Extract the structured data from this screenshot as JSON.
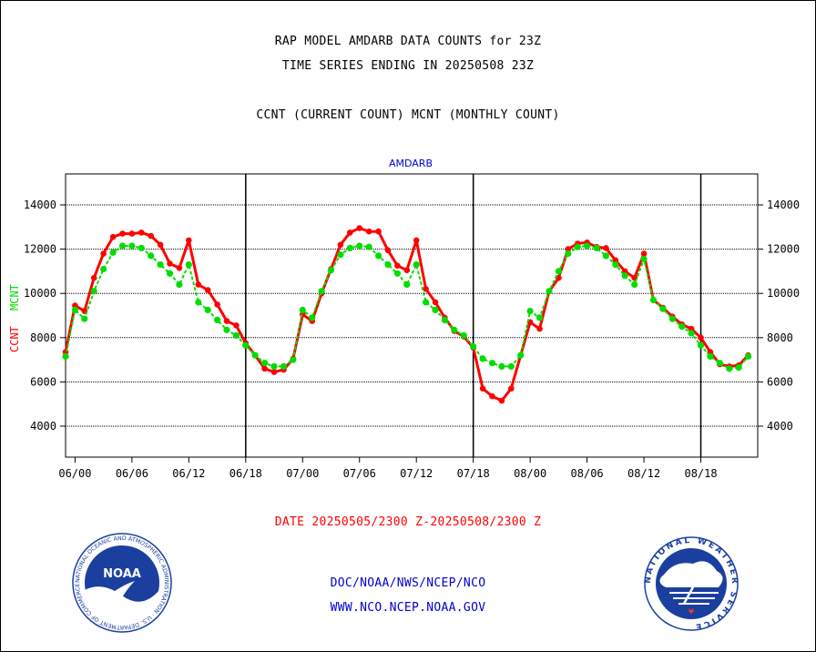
{
  "header": {
    "title_line1": "RAP MODEL AMDARB DATA COUNTS for 23Z",
    "title_line2": "TIME SERIES ENDING IN 20250508 23Z",
    "legend_line": "CCNT (CURRENT COUNT) MCNT (MONTHLY COUNT)"
  },
  "footer": {
    "date_range": "DATE 20250505/2300 Z-20250508/2300 Z",
    "org_line": "DOC/NOAA/NWS/NCEP/NCO",
    "url_line": "WWW.NCO.NCEP.NOAA.GOV"
  },
  "logos": {
    "noaa": {
      "center_text": "NOAA",
      "ring_text": "NATIONAL OCEANIC AND ATMOSPHERIC ADMINISTRATION · U.S. DEPARTMENT OF COMMERCE"
    },
    "nws": {
      "ring_text": "NATIONAL WEATHER SERVICE"
    }
  },
  "colors": {
    "ccnt": "#ff0000",
    "mcnt": "#00dd00",
    "label_blue": "#0000cc"
  },
  "chart_data": {
    "type": "line",
    "title": "AMDARB",
    "ylabel_ccnt": "CCNT",
    "ylabel_mcnt": "MCNT",
    "ylim": [
      2600,
      15400
    ],
    "yticks": [
      4000,
      6000,
      8000,
      10000,
      12000,
      14000
    ],
    "x_hours_range": [
      -1,
      72
    ],
    "xticks": [
      {
        "label": "06/00",
        "hour": 0
      },
      {
        "label": "06/06",
        "hour": 6
      },
      {
        "label": "06/12",
        "hour": 12
      },
      {
        "label": "06/18",
        "hour": 18
      },
      {
        "label": "07/00",
        "hour": 24
      },
      {
        "label": "07/06",
        "hour": 30
      },
      {
        "label": "07/12",
        "hour": 36
      },
      {
        "label": "07/18",
        "hour": 42
      },
      {
        "label": "08/00",
        "hour": 48
      },
      {
        "label": "08/06",
        "hour": 54
      },
      {
        "label": "08/12",
        "hour": 60
      },
      {
        "label": "08/18",
        "hour": 66
      }
    ],
    "day_boundaries_hours": [
      18,
      42,
      66
    ],
    "grid": "horizontal",
    "series": [
      {
        "name": "CCNT",
        "hours": [
          -1,
          0,
          1,
          2,
          3,
          4,
          5,
          6,
          7,
          8,
          9,
          10,
          11,
          12,
          13,
          14,
          15,
          16,
          17,
          18,
          19,
          20,
          21,
          22,
          23,
          24,
          25,
          26,
          27,
          28,
          29,
          30,
          31,
          32,
          33,
          34,
          35,
          36,
          37,
          38,
          39,
          40,
          41,
          42,
          43,
          44,
          45,
          46,
          47,
          48,
          49,
          50,
          51,
          52,
          53,
          54,
          55,
          56,
          57,
          58,
          59,
          60,
          61,
          62,
          63,
          64,
          65,
          66,
          67,
          68,
          69,
          70,
          71
        ],
        "values": [
          7350,
          9450,
          9200,
          10700,
          11800,
          12550,
          12700,
          12700,
          12750,
          12600,
          12200,
          11350,
          11150,
          12400,
          10400,
          10150,
          9500,
          8750,
          8550,
          7750,
          7200,
          6600,
          6450,
          6550,
          7050,
          9050,
          8750,
          10000,
          11100,
          12200,
          12750,
          12950,
          12800,
          12800,
          11950,
          11250,
          11050,
          12400,
          10200,
          9600,
          8900,
          8300,
          8050,
          7550,
          5700,
          5350,
          5150,
          5700,
          7200,
          8700,
          8400,
          10100,
          10700,
          12000,
          12250,
          12300,
          12100,
          12050,
          11500,
          11000,
          10700,
          11800,
          9700,
          9350,
          8950,
          8600,
          8400,
          8000,
          7350,
          6800,
          6700,
          6750,
          7200
        ]
      },
      {
        "name": "MCNT",
        "hours": [
          -1,
          0,
          1,
          2,
          3,
          4,
          5,
          6,
          7,
          8,
          9,
          10,
          11,
          12,
          13,
          14,
          15,
          16,
          17,
          18,
          19,
          20,
          21,
          22,
          23,
          24,
          25,
          26,
          27,
          28,
          29,
          30,
          31,
          32,
          33,
          34,
          35,
          36,
          37,
          38,
          39,
          40,
          41,
          42,
          43,
          44,
          45,
          46,
          47,
          48,
          49,
          50,
          51,
          52,
          53,
          54,
          55,
          56,
          57,
          58,
          59,
          60,
          61,
          62,
          63,
          64,
          65,
          66,
          67,
          68,
          69,
          70,
          71
        ],
        "values": [
          7150,
          9250,
          8850,
          10100,
          11100,
          11850,
          12150,
          12150,
          12050,
          11700,
          11300,
          10900,
          10400,
          11300,
          9600,
          9250,
          8800,
          8350,
          8100,
          7650,
          7200,
          6850,
          6700,
          6700,
          7000,
          9250,
          8900,
          10100,
          11050,
          11750,
          12050,
          12150,
          12100,
          11700,
          11300,
          10900,
          10400,
          11300,
          9600,
          9250,
          8800,
          8350,
          8100,
          7600,
          7050,
          6850,
          6700,
          6700,
          7200,
          9200,
          8900,
          10100,
          11000,
          11800,
          12100,
          12150,
          12050,
          11700,
          11300,
          10800,
          10400,
          11550,
          9700,
          9300,
          8850,
          8500,
          8200,
          7650,
          7150,
          6850,
          6600,
          6650,
          7150
        ]
      }
    ]
  }
}
